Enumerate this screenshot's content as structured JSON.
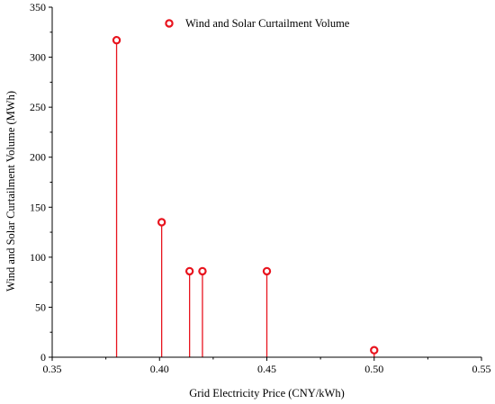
{
  "chart_data": {
    "type": "scatter",
    "style": "stem",
    "xlabel": "Grid Electricity Price (CNY/kWh)",
    "ylabel": "Wind and Solar Curtailment Volume (MWh)",
    "xlim": [
      0.35,
      0.55
    ],
    "ylim": [
      0,
      350
    ],
    "x_ticks": [
      "0.35",
      "0.40",
      "0.45",
      "0.50",
      "0.55"
    ],
    "y_ticks": [
      "0",
      "50",
      "100",
      "150",
      "200",
      "250",
      "300",
      "350"
    ],
    "grid": false,
    "legend_position": "top-right",
    "series": [
      {
        "name": "Wind and Solar Curtailment Volume",
        "color": "#e8141e",
        "marker": "open-circle",
        "x": [
          0.38,
          0.401,
          0.414,
          0.42,
          0.45,
          0.5
        ],
        "y": [
          317,
          135,
          86,
          86,
          86,
          7
        ]
      }
    ]
  }
}
